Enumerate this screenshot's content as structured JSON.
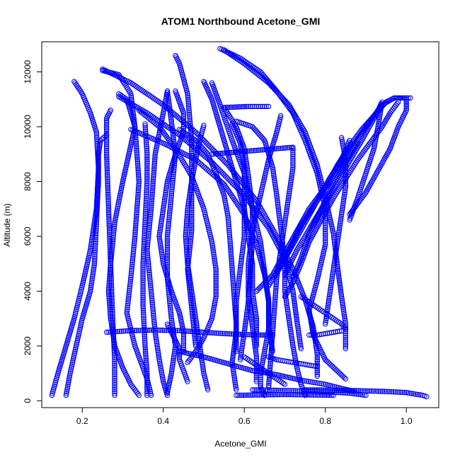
{
  "chart_data": {
    "type": "scatter",
    "title": "ATOM1 Northbound Acetone_GMI",
    "xlabel": "Acetone_GMI",
    "ylabel": "Altitude (m)",
    "xlim": [
      0.1,
      1.08
    ],
    "ylim": [
      -250,
      13100
    ],
    "xticks": [
      "0.2",
      "0.4",
      "0.6",
      "0.8",
      "1.0"
    ],
    "xtick_values": [
      0.2,
      0.4,
      0.6,
      0.8,
      1.0
    ],
    "yticks": [
      "0",
      "2000",
      "4000",
      "6000",
      "8000",
      "10000",
      "12000"
    ],
    "ytick_values": [
      0,
      2000,
      4000,
      6000,
      8000,
      10000,
      12000
    ],
    "marker": "open-circle",
    "color": "#0000ff",
    "grid": false,
    "legend": "none",
    "series": [
      {
        "x": [
          0.18,
          0.2,
          0.22,
          0.235,
          0.24,
          0.235,
          0.22,
          0.2,
          0.18,
          0.16,
          0.14,
          0.125
        ],
        "y": [
          11650,
          11200,
          10500,
          9800,
          8500,
          7000,
          5500,
          4200,
          3000,
          2000,
          1000,
          200
        ]
      },
      {
        "x": [
          0.26,
          0.245,
          0.24,
          0.24,
          0.235,
          0.23,
          0.22,
          0.2,
          0.185,
          0.17,
          0.16
        ],
        "y": [
          9700,
          9500,
          9000,
          8000,
          6500,
          5000,
          4000,
          3000,
          2000,
          1000,
          200
        ]
      },
      {
        "x": [
          0.25,
          0.29,
          0.32,
          0.33,
          0.3,
          0.28,
          0.27,
          0.265,
          0.27,
          0.28,
          0.3,
          0.32,
          0.34
        ],
        "y": [
          12050,
          11900,
          11200,
          10000,
          8000,
          6500,
          5000,
          4000,
          3000,
          2000,
          1200,
          600,
          200
        ]
      },
      {
        "x": [
          0.27,
          0.26,
          0.26,
          0.265,
          0.27,
          0.275,
          0.28,
          0.28
        ],
        "y": [
          10600,
          10300,
          9000,
          7000,
          5000,
          3000,
          1500,
          200
        ]
      },
      {
        "x": [
          0.29,
          0.31,
          0.33,
          0.34,
          0.33,
          0.32,
          0.31,
          0.33,
          0.36,
          0.37
        ],
        "y": [
          11200,
          11000,
          10000,
          8000,
          6000,
          4500,
          3200,
          2000,
          800,
          200
        ]
      },
      {
        "x": [
          0.25,
          0.32,
          0.4,
          0.48,
          0.56,
          0.63,
          0.68,
          0.72,
          0.75,
          0.77,
          0.78,
          0.78
        ],
        "y": [
          12100,
          11600,
          10800,
          9800,
          8600,
          7300,
          6000,
          4800,
          3700,
          2700,
          1700,
          900
        ]
      },
      {
        "x": [
          0.29,
          0.36,
          0.44,
          0.52,
          0.6,
          0.66,
          0.7,
          0.72,
          0.73,
          0.74
        ],
        "y": [
          11100,
          10500,
          9700,
          8700,
          7500,
          6300,
          5200,
          4000,
          2900,
          1900
        ]
      },
      {
        "x": [
          0.32,
          0.4,
          0.48,
          0.55,
          0.6,
          0.63,
          0.65,
          0.66,
          0.66,
          0.65,
          0.64,
          0.64,
          0.65
        ],
        "y": [
          9900,
          9400,
          8800,
          7900,
          6800,
          5700,
          4600,
          3600,
          2600,
          1800,
          1000,
          500,
          200
        ]
      },
      {
        "x": [
          0.34,
          0.39,
          0.43,
          0.47,
          0.5,
          0.52,
          0.53,
          0.53,
          0.52,
          0.5,
          0.48,
          0.46
        ],
        "y": [
          10600,
          10000,
          9200,
          8200,
          7000,
          5800,
          4800,
          3800,
          3000,
          2300,
          1800,
          1400
        ]
      },
      {
        "x": [
          0.355,
          0.36,
          0.36,
          0.355,
          0.35,
          0.35,
          0.355,
          0.36,
          0.36
        ],
        "y": [
          10100,
          9000,
          8000,
          6500,
          5000,
          3500,
          2000,
          1000,
          200
        ]
      },
      {
        "x": [
          0.41,
          0.4,
          0.38,
          0.37,
          0.36,
          0.37,
          0.38,
          0.39,
          0.4,
          0.41
        ],
        "y": [
          11300,
          10500,
          9000,
          7000,
          5500,
          4000,
          2500,
          1500,
          700,
          200
        ]
      },
      {
        "x": [
          0.41,
          0.42,
          0.43,
          0.42,
          0.41,
          0.41,
          0.42,
          0.43,
          0.42,
          0.41
        ],
        "y": [
          11300,
          10200,
          9000,
          7500,
          6000,
          4500,
          3000,
          2000,
          1000,
          300
        ]
      },
      {
        "x": [
          0.43,
          0.44,
          0.46,
          0.47,
          0.47,
          0.47,
          0.46,
          0.47,
          0.48
        ],
        "y": [
          12600,
          12300,
          11200,
          9500,
          8000,
          6200,
          4800,
          3400,
          2000
        ]
      },
      {
        "x": [
          0.43,
          0.45,
          0.45,
          0.43,
          0.41,
          0.4,
          0.39,
          0.4,
          0.42,
          0.44,
          0.45,
          0.45
        ],
        "y": [
          11300,
          10500,
          9800,
          9000,
          8000,
          7000,
          6000,
          5000,
          4000,
          3200,
          2500,
          1800
        ]
      },
      {
        "x": [
          0.5,
          0.49,
          0.48,
          0.47,
          0.46,
          0.455,
          0.46,
          0.47,
          0.48,
          0.49,
          0.5,
          0.51
        ],
        "y": [
          10050,
          9500,
          8800,
          8000,
          7000,
          6000,
          5000,
          4000,
          3000,
          2000,
          1000,
          400
        ]
      },
      {
        "x": [
          0.44,
          0.48,
          0.51,
          0.53,
          0.55,
          0.56,
          0.565,
          0.57,
          0.575,
          0.58,
          0.58
        ],
        "y": [
          9900,
          9500,
          9000,
          8300,
          7500,
          6700,
          5800,
          4800,
          3800,
          2800,
          1800
        ]
      },
      {
        "x": [
          0.5,
          0.52,
          0.54,
          0.56,
          0.58,
          0.6,
          0.61,
          0.62,
          0.62,
          0.63,
          0.63
        ],
        "y": [
          11650,
          11000,
          10000,
          9000,
          8000,
          7000,
          6000,
          5000,
          4000,
          3000,
          2000
        ]
      },
      {
        "x": [
          0.52,
          0.54,
          0.57,
          0.6,
          0.62,
          0.64,
          0.65,
          0.66,
          0.66,
          0.67
        ],
        "y": [
          11600,
          10800,
          9500,
          8300,
          7000,
          5800,
          4700,
          3700,
          2700,
          1800
        ]
      },
      {
        "x": [
          0.54,
          0.59,
          0.64,
          0.68,
          0.72,
          0.75,
          0.78,
          0.8,
          0.8,
          0.78,
          0.76,
          0.77,
          0.8,
          0.85
        ],
        "y": [
          12850,
          12500,
          12000,
          11300,
          10500,
          9500,
          8300,
          7000,
          5700,
          4400,
          3300,
          2400,
          1500,
          800
        ]
      },
      {
        "x": [
          0.55,
          0.6,
          0.66,
          0.71,
          0.75,
          0.78,
          0.8,
          0.82,
          0.83,
          0.84,
          0.85,
          0.85
        ],
        "y": [
          12800,
          12300,
          11600,
          10800,
          9800,
          8600,
          7400,
          6100,
          4900,
          3800,
          2800,
          1900
        ]
      },
      {
        "x": [
          0.58,
          0.62,
          0.65,
          0.67,
          0.68,
          0.69,
          0.7,
          0.7,
          0.71,
          0.72,
          0.73,
          0.74,
          0.75
        ],
        "y": [
          10200,
          10000,
          9500,
          8500,
          7500,
          6300,
          5100,
          4000,
          3000,
          2000,
          1200,
          600,
          200
        ]
      },
      {
        "x": [
          0.55,
          0.58,
          0.6,
          0.61,
          0.62,
          0.62,
          0.615,
          0.61,
          0.6,
          0.59
        ],
        "y": [
          10700,
          10000,
          9200,
          8200,
          7000,
          5800,
          4700,
          3600,
          2500,
          1500
        ]
      },
      {
        "x": [
          0.57,
          0.59,
          0.6,
          0.6,
          0.6,
          0.59,
          0.58,
          0.58,
          0.57,
          0.58
        ],
        "y": [
          10100,
          9400,
          8500,
          7300,
          6000,
          4800,
          3600,
          2500,
          1400,
          400
        ]
      },
      {
        "x": [
          0.69,
          0.68,
          0.66,
          0.64,
          0.62,
          0.61,
          0.61,
          0.62,
          0.63,
          0.63
        ],
        "y": [
          10400,
          9800,
          8800,
          7500,
          6200,
          5000,
          3800,
          2700,
          1600,
          700
        ]
      },
      {
        "x": [
          0.72,
          0.72,
          0.71,
          0.7,
          0.69,
          0.68,
          0.675,
          0.67,
          0.665,
          0.66
        ],
        "y": [
          9200,
          8500,
          7500,
          6500,
          5500,
          4500,
          3500,
          2500,
          1500,
          500
        ]
      },
      {
        "x": [
          0.52,
          0.56,
          0.6,
          0.64,
          0.68,
          0.72
        ],
        "y": [
          9000,
          9050,
          9100,
          9150,
          9200,
          9250
        ]
      },
      {
        "x": [
          0.55,
          0.58,
          0.61,
          0.63,
          0.65,
          0.66
        ],
        "y": [
          10700,
          10720,
          10740,
          10740,
          10740,
          10740
        ]
      },
      {
        "x": [
          0.72,
          0.74,
          0.76,
          0.79,
          0.82,
          0.85,
          0.88
        ],
        "y": [
          4500,
          5200,
          6100,
          7000,
          7900,
          8700,
          9400
        ]
      },
      {
        "x": [
          0.7,
          0.73,
          0.77,
          0.81,
          0.85,
          0.89,
          0.92,
          0.94,
          0.93,
          0.92,
          0.9,
          0.88,
          0.86
        ],
        "y": [
          4600,
          5500,
          6500,
          7500,
          8500,
          9500,
          10300,
          10900,
          10000,
          9200,
          8300,
          7400,
          6600
        ]
      },
      {
        "x": [
          0.68,
          0.71,
          0.74,
          0.78,
          0.82,
          0.86,
          0.9,
          0.94,
          0.97,
          1.0,
          1.0,
          0.98,
          0.96,
          0.93,
          0.9,
          0.86
        ],
        "y": [
          4700,
          5500,
          6400,
          7300,
          8200,
          9100,
          10000,
          10800,
          11050,
          11050,
          10600,
          10000,
          9200,
          8400,
          7600,
          6800
        ]
      },
      {
        "x": [
          0.63,
          0.67,
          0.7,
          0.73,
          0.76,
          0.8,
          0.83,
          0.86,
          0.89,
          0.92,
          0.95,
          0.97,
          0.99,
          1.0,
          1.01
        ],
        "y": [
          4000,
          4600,
          5400,
          6200,
          7000,
          7800,
          8600,
          9300,
          9900,
          10400,
          10900,
          11050,
          11050,
          11050,
          11050
        ]
      },
      {
        "x": [
          0.7,
          0.72,
          0.74,
          0.76,
          0.79,
          0.82,
          0.85,
          0.88,
          0.91,
          0.94,
          0.96,
          0.98
        ],
        "y": [
          3800,
          4300,
          5000,
          5800,
          6600,
          7400,
          8100,
          8800,
          9400,
          10000,
          10500,
          10900
        ]
      },
      {
        "x": [
          0.66,
          0.69,
          0.72,
          0.75,
          0.78,
          0.81,
          0.84,
          0.86
        ],
        "y": [
          4200,
          4900,
          5700,
          6500,
          7300,
          8100,
          8800,
          9500
        ]
      },
      {
        "x": [
          0.84,
          0.85,
          0.85,
          0.84,
          0.83,
          0.82,
          0.81,
          0.8
        ],
        "y": [
          9600,
          8800,
          7800,
          6800,
          5800,
          4800,
          3800,
          2800
        ]
      },
      {
        "x": [
          0.26,
          0.32,
          0.38,
          0.44,
          0.5,
          0.55,
          0.6,
          0.64,
          0.67
        ],
        "y": [
          2500,
          2560,
          2580,
          2560,
          2500,
          2450,
          2420,
          2400,
          2400
        ]
      },
      {
        "x": [
          0.44,
          0.5,
          0.56,
          0.62,
          0.68,
          0.74,
          0.8,
          0.84,
          0.87
        ],
        "y": [
          1800,
          1600,
          1350,
          1100,
          950,
          750,
          600,
          450,
          350
        ]
      },
      {
        "x": [
          0.62,
          0.68,
          0.74,
          0.8,
          0.86,
          0.9
        ],
        "y": [
          400,
          380,
          360,
          330,
          280,
          200
        ]
      },
      {
        "x": [
          0.75,
          0.8,
          0.85,
          0.9,
          0.95,
          1.0,
          1.04,
          1.05
        ],
        "y": [
          400,
          390,
          380,
          360,
          340,
          300,
          200,
          150
        ]
      },
      {
        "x": [
          0.58,
          0.62,
          0.66,
          0.7,
          0.74,
          0.78,
          0.82
        ],
        "y": [
          200,
          210,
          220,
          230,
          220,
          210,
          200
        ]
      },
      {
        "x": [
          0.74,
          0.76,
          0.78,
          0.8,
          0.82,
          0.84,
          0.85
        ],
        "y": [
          3800,
          3600,
          3400,
          3200,
          3000,
          2800,
          2600
        ]
      },
      {
        "x": [
          0.76,
          0.78,
          0.8,
          0.82,
          0.84
        ],
        "y": [
          2400,
          2400,
          2450,
          2500,
          2550
        ]
      },
      {
        "x": [
          0.6,
          0.62,
          0.64,
          0.66,
          0.68,
          0.7
        ],
        "y": [
          1600,
          1400,
          1200,
          1000,
          800,
          600
        ]
      },
      {
        "x": [
          0.66,
          0.68,
          0.7,
          0.72,
          0.74,
          0.76,
          0.78
        ],
        "y": [
          1600,
          1500,
          1450,
          1400,
          1350,
          1300,
          1250
        ]
      },
      {
        "x": [
          0.41,
          0.42,
          0.43,
          0.44,
          0.44,
          0.45,
          0.46
        ],
        "y": [
          2800,
          2500,
          2200,
          1900,
          1500,
          1100,
          700
        ]
      }
    ]
  }
}
